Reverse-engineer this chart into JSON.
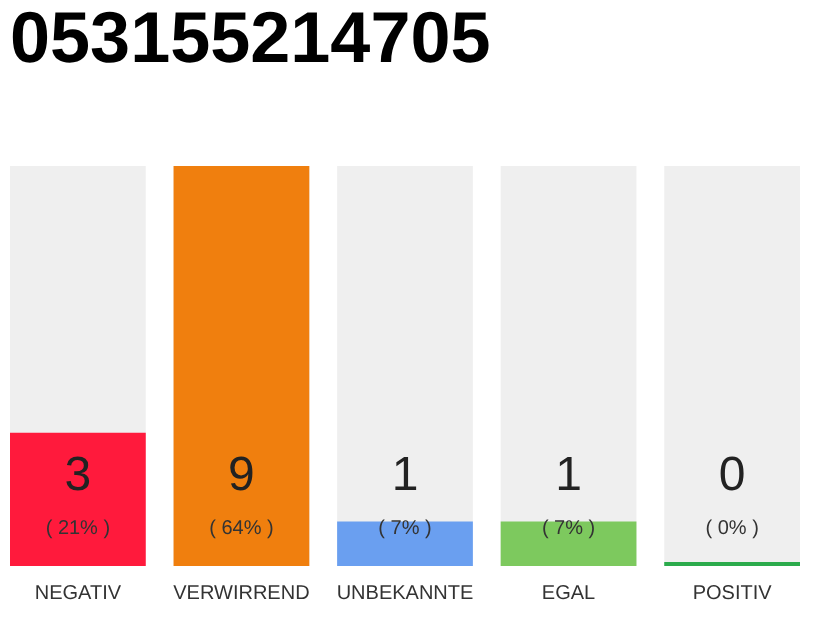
{
  "chart_data": {
    "type": "bar",
    "title": "053155214705",
    "categories": [
      "NEGATIV",
      "VERWIRREND",
      "UNBEKANNTE",
      "EGAL",
      "POSITIV"
    ],
    "values": [
      3,
      9,
      1,
      1,
      0
    ],
    "colors": [
      "#ff1a3c",
      "#f07f0e",
      "#6a9ff0",
      "#7dc95e",
      "#2bab4c"
    ],
    "data_labels": true,
    "annotations": [
      "( 21% )",
      "( 64% )",
      "( 7% )",
      "( 7% )",
      "( 0% )"
    ],
    "grid": false
  }
}
